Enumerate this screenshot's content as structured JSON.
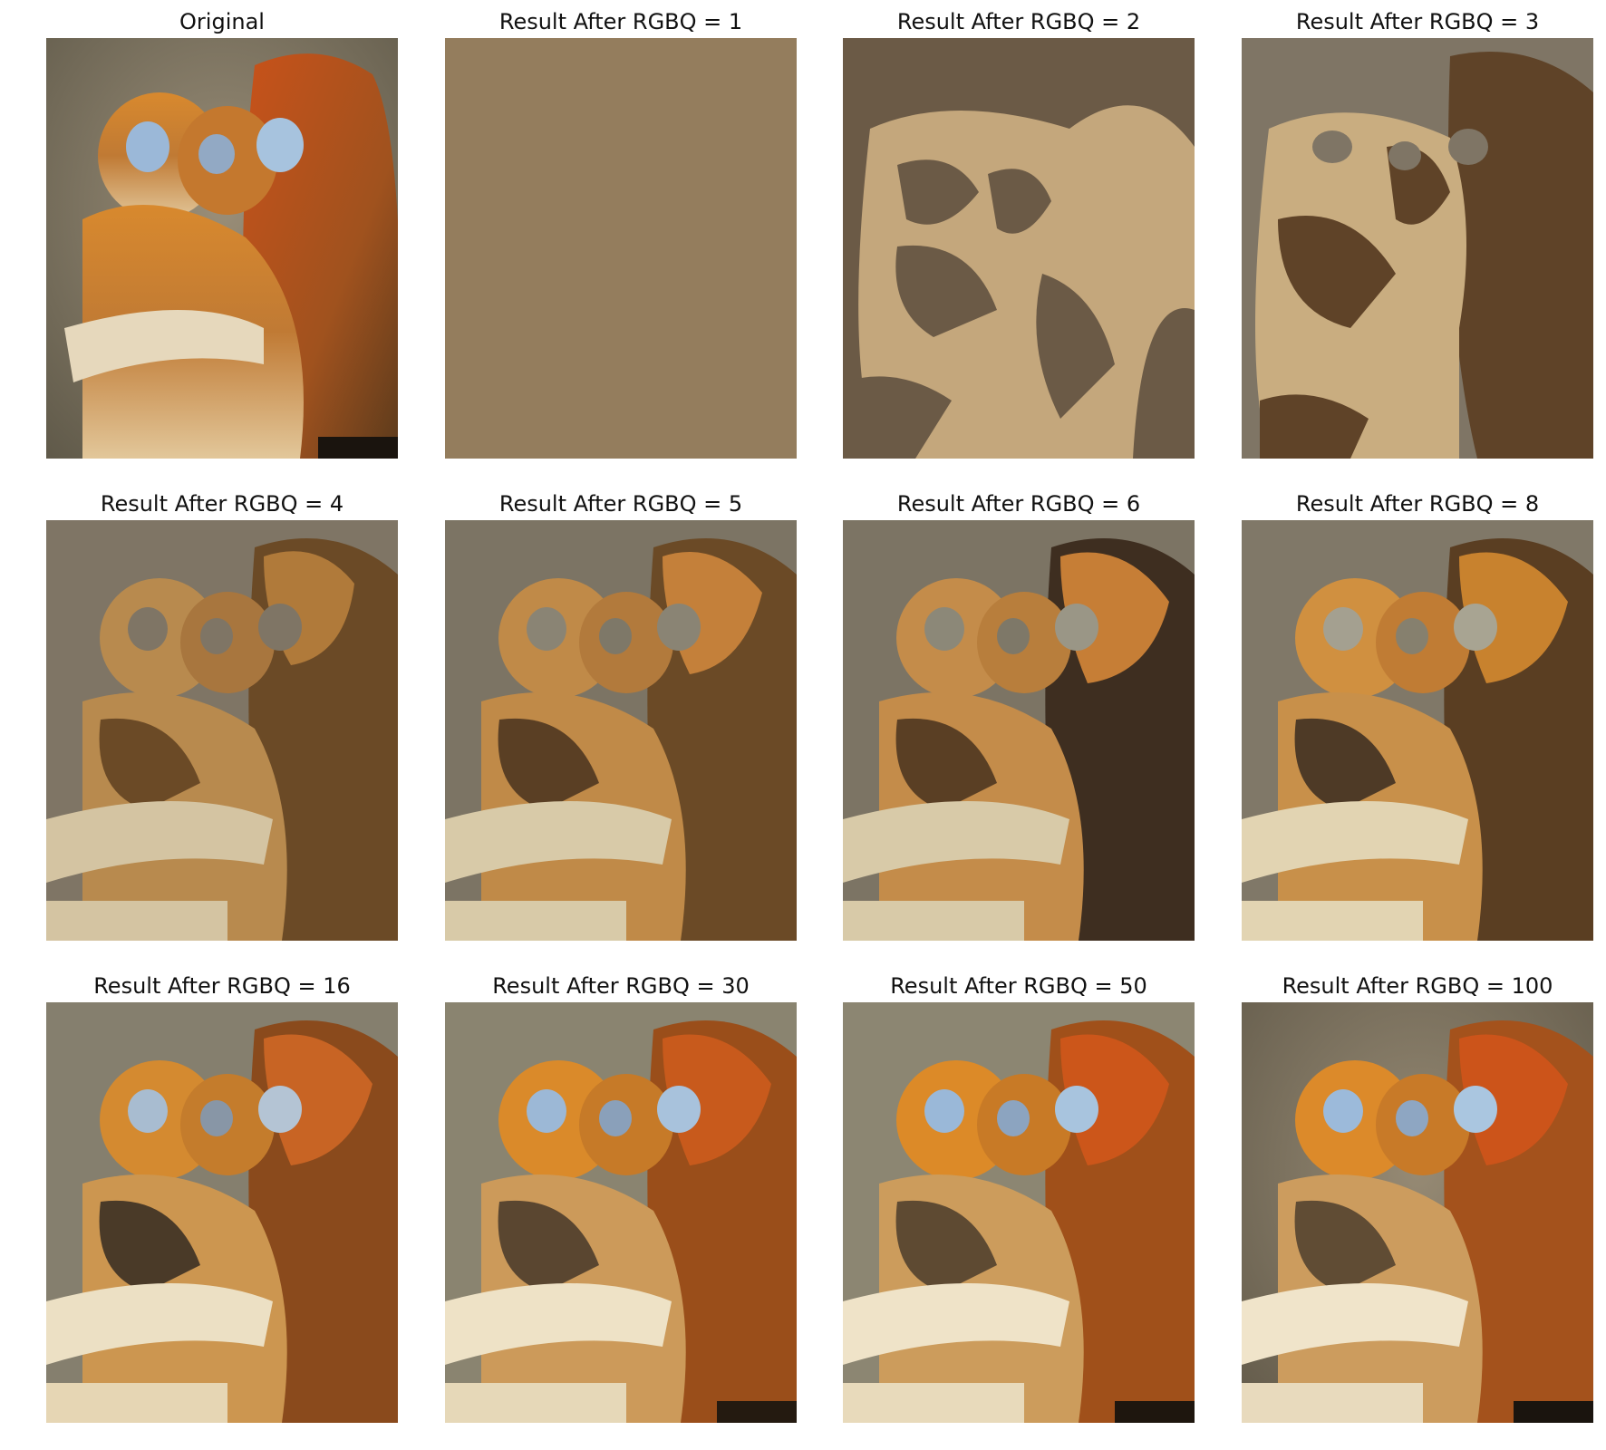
{
  "figure": {
    "panels": [
      {
        "title": "Original",
        "levels": null,
        "image_icon": "monkeys-photo-original"
      },
      {
        "title": "Result After RGBQ = 1",
        "levels": 1,
        "image_icon": "monkeys-photo-quantized"
      },
      {
        "title": "Result After RGBQ = 2",
        "levels": 2,
        "image_icon": "monkeys-photo-quantized"
      },
      {
        "title": "Result After RGBQ = 3",
        "levels": 3,
        "image_icon": "monkeys-photo-quantized"
      },
      {
        "title": "Result After RGBQ = 4",
        "levels": 4,
        "image_icon": "monkeys-photo-quantized"
      },
      {
        "title": "Result After RGBQ = 5",
        "levels": 5,
        "image_icon": "monkeys-photo-quantized"
      },
      {
        "title": "Result After RGBQ = 6",
        "levels": 6,
        "image_icon": "monkeys-photo-quantized"
      },
      {
        "title": "Result After RGBQ = 8",
        "levels": 8,
        "image_icon": "monkeys-photo-quantized"
      },
      {
        "title": "Result After RGBQ = 16",
        "levels": 16,
        "image_icon": "monkeys-photo-quantized"
      },
      {
        "title": "Result After RGBQ = 30",
        "levels": 30,
        "image_icon": "monkeys-photo-quantized"
      },
      {
        "title": "Result After RGBQ = 50",
        "levels": 50,
        "image_icon": "monkeys-photo-quantized"
      },
      {
        "title": "Result After RGBQ = 100",
        "levels": 100,
        "image_icon": "monkeys-photo-quantized"
      }
    ],
    "colors": {
      "single_level_fill": "#947d5d",
      "two_level_dark": "#6b5a46",
      "two_level_light": "#c4a77c",
      "three_level_dark": "#5f4328",
      "three_level_mid": "#7f7565",
      "three_level_light": "#c9ad80",
      "fur_orange": "#d47a24",
      "fur_deep": "#a8501a",
      "fur_pale": "#e9dcc0",
      "face_blue": "#9bb8d8",
      "background_grey": "#8a8470"
    }
  }
}
